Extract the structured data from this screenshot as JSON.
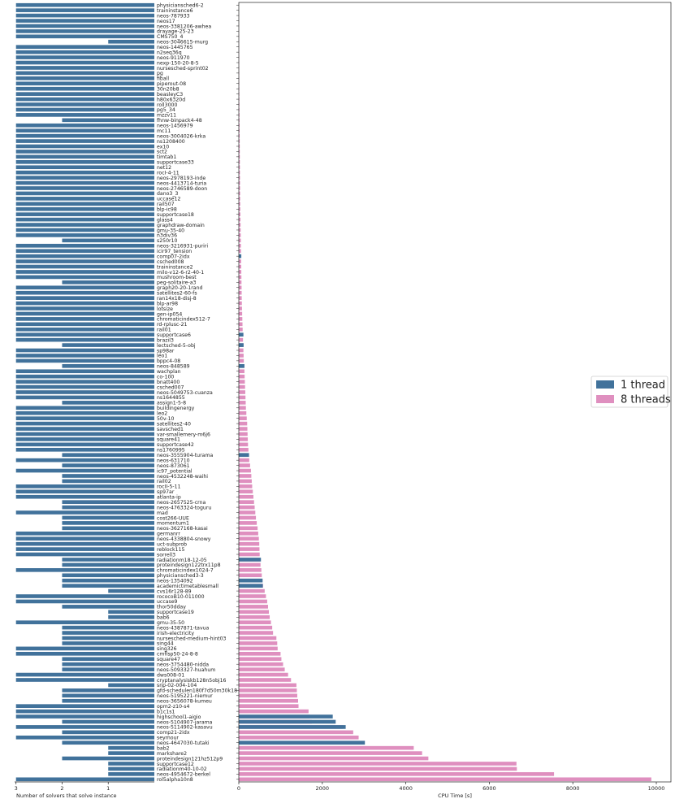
{
  "chart_data": [
    {
      "type": "bar",
      "orientation": "horizontal",
      "xlabel": "Number of solvers that solve instance",
      "color": "#41729b",
      "xlim": [
        3.03,
        0
      ],
      "xticks": [
        3,
        2,
        1
      ],
      "categories": [
        "physiciansched6-2",
        "traininstance6",
        "neos-787933",
        "neos17",
        "neos-3381206-awhea",
        "drayage-25-23",
        "CMS750_4",
        "neos-3046615-murg",
        "neos-1445765",
        "n2seq36q",
        "neos-911970",
        "nexp-150-20-8-5",
        "nursesched-sprint02",
        "pg",
        "fiball",
        "piperout-08",
        "30n20b8",
        "beasleyC3",
        "h80x6320d",
        "roll3000",
        "pg5_34",
        "mzzv11",
        "fhnw-binpack4-48",
        "neos-1456979",
        "mc11",
        "neos-3004026-krka",
        "ns1208400",
        "ex10",
        "sct2",
        "timtab1",
        "supportcase33",
        "net12",
        "rocI-4-11",
        "neos-2978193-inde",
        "neos-4413714-turia",
        "neos-2746589-doon",
        "dano3_3",
        "uccase12",
        "rail507",
        "blp-ic98",
        "supportcase18",
        "glass4",
        "graphdraw-domain",
        "gmu-35-40",
        "n3div36",
        "s250r10",
        "neos-3216931-puriri",
        "icir97_tension",
        "comp07-2idx",
        "csched008",
        "traininstance2",
        "milo-v12-6-r2-40-1",
        "mushroom-best",
        "peg-solitaire-a3",
        "graph20-20-1rand",
        "satellites2-60-fs",
        "ran14x18-disj-8",
        "blp-ar98",
        "lotsize",
        "gen-ip054",
        "chromaticindex512-7",
        "rd-rplusc-21",
        "rail01",
        "supportcase6",
        "brazil3",
        "lectsched-5-obj",
        "sp98ar",
        "leo1",
        "bppc4-08",
        "neos-848589",
        "wachplan",
        "co-100",
        "bnatt400",
        "csched007",
        "neos-5049753-cuanza",
        "ns1644855",
        "assign1-5-8",
        "buildingenergy",
        "leo2",
        "50v-10",
        "satellites2-40",
        "savsched1",
        "var-smallemery-m6j6",
        "square41",
        "supportcase42",
        "ns1760995",
        "neos-3555904-turama",
        "neos-631710",
        "neos-873061",
        "ic97_potential",
        "neos-4532248-waihi",
        "rail02",
        "rocII-5-11",
        "sp97ar",
        "atlanta-ip",
        "neos-2657525-crna",
        "neos-4763324-toguru",
        "mad",
        "cost266-UUE",
        "momentum1",
        "neos-3627168-kasai",
        "germanrr",
        "neos-4338804-snowy",
        "uct-subprob",
        "reblock115",
        "sorrell3",
        "radiationm18-12-05",
        "proteindesign122trx11p8",
        "chromaticindex1024-7",
        "physiciansched3-3",
        "neos-1354092",
        "academictimetablesmall",
        "cvs16r128-89",
        "rococoB10-011000",
        "uccase9",
        "thor50dday",
        "supportcase19",
        "bab6",
        "gmu-35-50",
        "neos-4387871-tavua",
        "irish-electricity",
        "nursesched-medium-hint03",
        "sing44",
        "sing326",
        "cmflsp50-24-8-8",
        "square47",
        "neos-3754480-nidda",
        "neos-5093327-huahum",
        "dws008-01",
        "cryptanalysiskb128n5obj16",
        "snp-02-004-104",
        "gfd-schedulen180f7d50m30k18",
        "neos-5195221-niemur",
        "neos-3656078-kumeu",
        "opm2-z10-s4",
        "b1c1s1",
        "highschool1-aigio",
        "neos-5104907-jarama",
        "neos-5114902-kasavu",
        "comp21-2idx",
        "seymour",
        "neos-4647030-tutaki",
        "bab2",
        "markshare2",
        "proteindesign121hz512p9",
        "supportcase12",
        "radiationm40-10-02",
        "neos-4954672-berkel",
        "rol5alpha10n8"
      ],
      "values": [
        3,
        3,
        3,
        3,
        3,
        3,
        3,
        1,
        3,
        3,
        3,
        3,
        3,
        3,
        3,
        3,
        3,
        3,
        3,
        3,
        3,
        3,
        2,
        3,
        3,
        3,
        3,
        3,
        3,
        3,
        3,
        3,
        3,
        3,
        3,
        3,
        3,
        3,
        3,
        3,
        3,
        3,
        3,
        3,
        3,
        2,
        3,
        3,
        3,
        3,
        3,
        3,
        3,
        2,
        3,
        3,
        3,
        3,
        3,
        3,
        3,
        3,
        3,
        3,
        3,
        2,
        3,
        3,
        3,
        2,
        3,
        3,
        3,
        3,
        3,
        3,
        2,
        3,
        3,
        3,
        3,
        3,
        3,
        3,
        3,
        3,
        2,
        3,
        2,
        3,
        2,
        2,
        3,
        3,
        3,
        2,
        2,
        3,
        2,
        2,
        2,
        3,
        3,
        3,
        3,
        3,
        2,
        2,
        3,
        2,
        2,
        2,
        1,
        3,
        3,
        2,
        1,
        1,
        3,
        2,
        2,
        2,
        2,
        3,
        3,
        2,
        2,
        2,
        3,
        3,
        1,
        2,
        2,
        2,
        3,
        3,
        3,
        2,
        3,
        2,
        3,
        2,
        1,
        1,
        2,
        1,
        1,
        1,
        3
      ]
    },
    {
      "type": "bar",
      "orientation": "horizontal",
      "xlabel": "CPU Time [s]",
      "legend": "center right",
      "xlim": [
        0,
        10350
      ],
      "xticks": [
        0,
        2000,
        4000,
        6000,
        8000,
        10000
      ],
      "series": [
        {
          "name": "8 threads",
          "color": "#df8fbf",
          "values": [
            1,
            1,
            2,
            2,
            3,
            3,
            4,
            4,
            5,
            5,
            6,
            6,
            7,
            8,
            9,
            10,
            11,
            12,
            13,
            14,
            15,
            16,
            17,
            18,
            19,
            20,
            21,
            22,
            23,
            24,
            25,
            26,
            27,
            28,
            29,
            30,
            31,
            32,
            34,
            36,
            38,
            40,
            42,
            44,
            46,
            48,
            50,
            52,
            54,
            56,
            58,
            60,
            62,
            64,
            66,
            68,
            70,
            73,
            76,
            80,
            84,
            88,
            92,
            96,
            100,
            105,
            110,
            115,
            120,
            130,
            135,
            140,
            145,
            150,
            155,
            160,
            165,
            170,
            180,
            190,
            200,
            205,
            210,
            215,
            220,
            230,
            240,
            250,
            270,
            290,
            300,
            310,
            320,
            335,
            350,
            365,
            380,
            395,
            410,
            430,
            450,
            465,
            480,
            490,
            495,
            500,
            510,
            520,
            540,
            550,
            560,
            580,
            620,
            650,
            680,
            700,
            720,
            740,
            770,
            800,
            820,
            900,
            920,
            930,
            1000,
            1020,
            1060,
            1100,
            1180,
            1250,
            1380,
            1390,
            1400,
            1420,
            1430,
            1670,
            1700,
            1750,
            2500,
            2740,
            2870,
            2900,
            4190,
            4390,
            4540,
            6650,
            6660,
            7550,
            9880
          ]
        },
        {
          "name": "1 thread",
          "color": "#41729b",
          "values": [
            null,
            null,
            null,
            null,
            null,
            null,
            null,
            null,
            null,
            null,
            null,
            null,
            null,
            null,
            null,
            null,
            null,
            null,
            null,
            null,
            null,
            null,
            null,
            null,
            null,
            null,
            null,
            null,
            null,
            null,
            null,
            null,
            null,
            null,
            null,
            null,
            null,
            null,
            null,
            null,
            null,
            null,
            null,
            null,
            null,
            null,
            null,
            null,
            60,
            null,
            null,
            null,
            null,
            null,
            null,
            null,
            null,
            null,
            null,
            null,
            null,
            null,
            null,
            110,
            null,
            115,
            null,
            null,
            null,
            135,
            null,
            null,
            null,
            null,
            null,
            null,
            null,
            null,
            null,
            null,
            null,
            null,
            null,
            null,
            null,
            null,
            245,
            null,
            null,
            null,
            null,
            null,
            null,
            null,
            null,
            null,
            null,
            null,
            null,
            null,
            null,
            null,
            null,
            null,
            null,
            null,
            530,
            null,
            null,
            null,
            570,
            575,
            null,
            null,
            null,
            null,
            null,
            null,
            null,
            null,
            null,
            null,
            null,
            null,
            null,
            null,
            null,
            null,
            null,
            null,
            null,
            null,
            null,
            null,
            null,
            null,
            2250,
            2320,
            2560,
            null,
            null,
            3020,
            null,
            null,
            null,
            null,
            null,
            null,
            null
          ]
        }
      ]
    }
  ]
}
